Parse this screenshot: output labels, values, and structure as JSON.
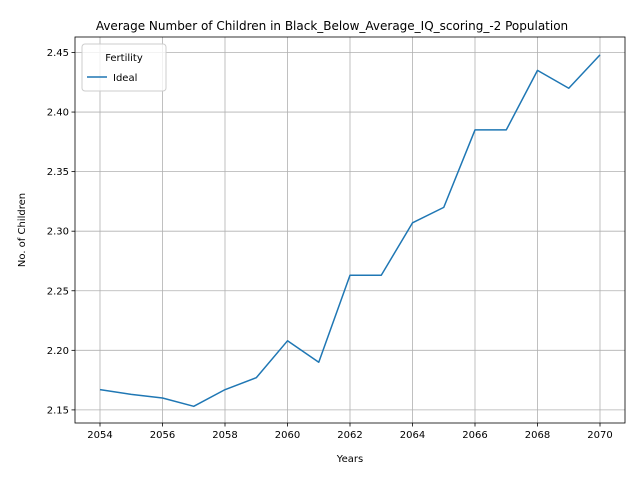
{
  "chart_data": {
    "type": "line",
    "title": "Average Number of Children in Black_Below_Average_IQ_scoring_-2 Population",
    "xlabel": "Years",
    "ylabel": "No. of Children",
    "xlim": [
      2053.2,
      2070.8
    ],
    "ylim": [
      2.139,
      2.463
    ],
    "xticks": [
      2054,
      2056,
      2058,
      2060,
      2062,
      2064,
      2066,
      2068,
      2070
    ],
    "yticks": [
      2.15,
      2.2,
      2.25,
      2.3,
      2.35,
      2.4,
      2.45
    ],
    "ytick_labels": [
      "2.15",
      "2.20",
      "2.25",
      "2.30",
      "2.35",
      "2.40",
      "2.45"
    ],
    "grid": true,
    "legend": {
      "title": "Fertility",
      "position": "top-left"
    },
    "series": [
      {
        "name": "Ideal",
        "color": "#1f77b4",
        "x": [
          2054,
          2055,
          2056,
          2057,
          2058,
          2059,
          2060,
          2061,
          2062,
          2063,
          2064,
          2065,
          2066,
          2067,
          2068,
          2069,
          2070
        ],
        "values": [
          2.167,
          2.163,
          2.16,
          2.153,
          2.167,
          2.177,
          2.208,
          2.19,
          2.263,
          2.263,
          2.307,
          2.32,
          2.385,
          2.385,
          2.435,
          2.42,
          2.448
        ]
      }
    ]
  }
}
